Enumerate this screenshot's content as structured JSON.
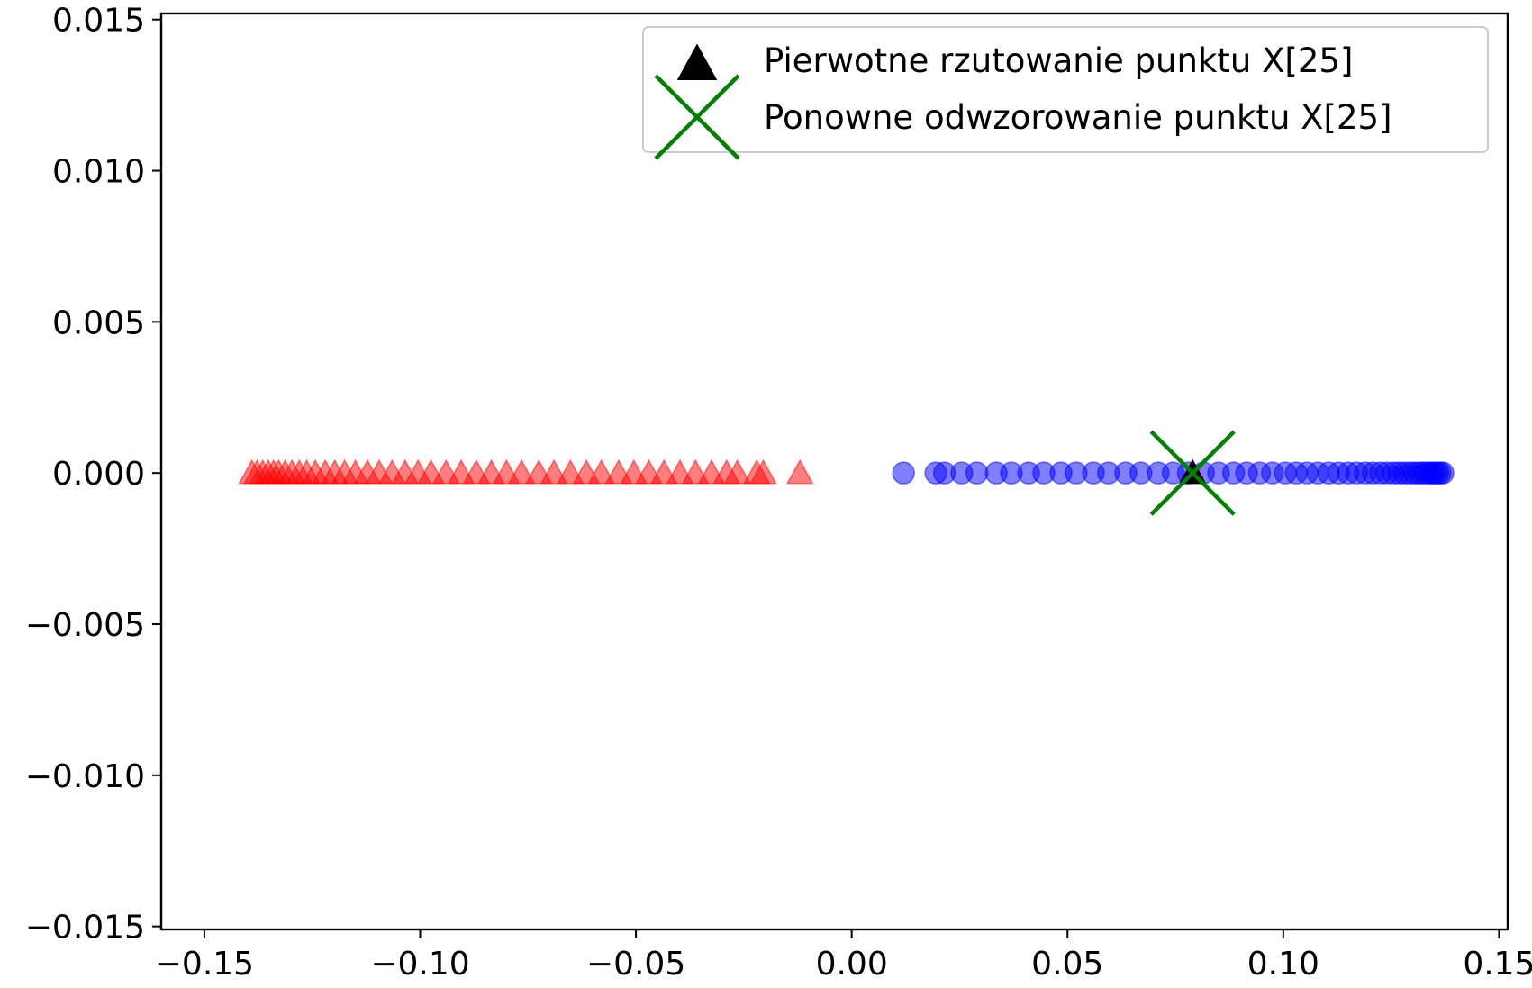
{
  "chart_data": {
    "type": "scatter",
    "title": "",
    "xlabel": "",
    "ylabel": "",
    "xlim": [
      -0.16,
      0.152
    ],
    "ylim": [
      -0.0151,
      0.0152
    ],
    "grid": false,
    "x_ticks": [
      -0.15,
      -0.1,
      -0.05,
      0.0,
      0.05,
      0.1,
      0.15
    ],
    "x_tick_labels": [
      "−0.15",
      "−0.10",
      "−0.05",
      "0.00",
      "0.05",
      "0.10",
      "0.15"
    ],
    "y_ticks": [
      0.015,
      0.01,
      0.005,
      0.0,
      -0.005,
      -0.01,
      -0.015
    ],
    "y_tick_labels": [
      "0.015",
      "0.010",
      "0.005",
      "0.000",
      "−0.005",
      "−0.010",
      "−0.015"
    ],
    "legend_position": "top-right",
    "series": [
      {
        "marker": "triangle",
        "color": "#ff0000",
        "alpha": 0.5,
        "x": [
          -0.139,
          -0.1378,
          -0.1365,
          -0.1352,
          -0.134,
          -0.1328,
          -0.1313,
          -0.1297,
          -0.128,
          -0.1263,
          -0.1243,
          -0.122,
          -0.1198,
          -0.1175,
          -0.115,
          -0.1122,
          -0.1095,
          -0.1065,
          -0.1035,
          -0.1005,
          -0.0975,
          -0.094,
          -0.0905,
          -0.087,
          -0.0835,
          -0.08,
          -0.0765,
          -0.0725,
          -0.069,
          -0.0652,
          -0.0615,
          -0.058,
          -0.054,
          -0.0505,
          -0.047,
          -0.0435,
          -0.0398,
          -0.0362,
          -0.0325,
          -0.029,
          -0.0265,
          -0.022,
          -0.0205,
          -0.012
        ],
        "y": [
          0,
          0,
          0,
          0,
          0,
          0,
          0,
          0,
          0,
          0,
          0,
          0,
          0,
          0,
          0,
          0,
          0,
          0,
          0,
          0,
          0,
          0,
          0,
          0,
          0,
          0,
          0,
          0,
          0,
          0,
          0,
          0,
          0,
          0,
          0,
          0,
          0,
          0,
          0,
          0,
          0,
          0,
          0,
          0
        ]
      },
      {
        "marker": "circle",
        "color": "#0000ff",
        "alpha": 0.5,
        "x": [
          0.012,
          0.0195,
          0.0215,
          0.0255,
          0.029,
          0.0335,
          0.037,
          0.041,
          0.0445,
          0.0485,
          0.052,
          0.056,
          0.0595,
          0.0635,
          0.067,
          0.071,
          0.0745,
          0.078,
          0.0815,
          0.085,
          0.0885,
          0.0915,
          0.0945,
          0.0975,
          0.1005,
          0.103,
          0.1055,
          0.108,
          0.1105,
          0.1128,
          0.115,
          0.117,
          0.119,
          0.1208,
          0.1225,
          0.124,
          0.1255,
          0.1268,
          0.128,
          0.1292,
          0.1303,
          0.1313,
          0.1322,
          0.133,
          0.1338,
          0.1345,
          0.1352,
          0.1358,
          0.1364,
          0.137
        ],
        "y": [
          0,
          0,
          0,
          0,
          0,
          0,
          0,
          0,
          0,
          0,
          0,
          0,
          0,
          0,
          0,
          0,
          0,
          0,
          0,
          0,
          0,
          0,
          0,
          0,
          0,
          0,
          0,
          0,
          0,
          0,
          0,
          0,
          0,
          0,
          0,
          0,
          0,
          0,
          0,
          0,
          0,
          0,
          0,
          0,
          0,
          0,
          0,
          0,
          0,
          0
        ]
      },
      {
        "name": "Pierwotne rzutowanie punktu X[25]",
        "marker": "triangle",
        "color": "#000000",
        "alpha": 1,
        "x": [
          0.079
        ],
        "y": [
          0
        ]
      },
      {
        "name": "Ponowne odwzorowanie punktu X[25]",
        "marker": "x",
        "color": "#008000",
        "alpha": 1,
        "x": [
          0.079
        ],
        "y": [
          0
        ]
      }
    ]
  }
}
